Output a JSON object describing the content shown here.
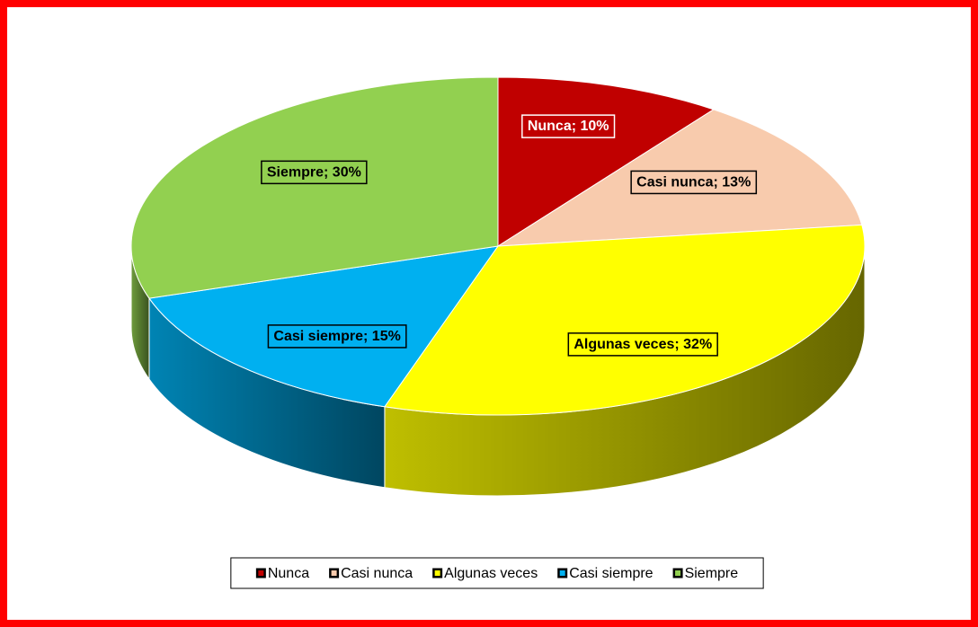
{
  "chart_data": {
    "type": "pie3d",
    "categories": [
      "Nunca",
      "Casi nunca",
      "Algunas veces",
      "Casi siempre",
      "Siempre"
    ],
    "values": [
      10,
      13,
      32,
      15,
      30
    ],
    "value_labels": [
      "Nunca; 10%",
      "Casi nunca; 13%",
      "Algunas veces; 32%",
      "Casi siempre; 15%",
      "Siempre; 30%"
    ],
    "colors": [
      "#c00000",
      "#f8cbad",
      "#ffff00",
      "#00b0f0",
      "#92d050"
    ],
    "legend": "bottom"
  }
}
